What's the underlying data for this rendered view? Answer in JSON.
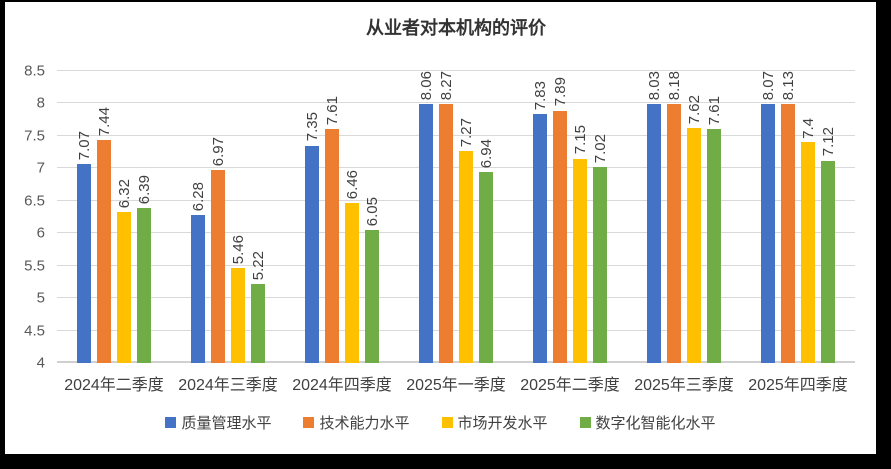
{
  "chart_data": {
    "type": "bar",
    "title": "从业者对本机构的评价",
    "categories": [
      "2024年二季度",
      "2024年三季度",
      "2024年四季度",
      "2025年一季度",
      "2025年二季度",
      "2025年三季度",
      "2025年四季度"
    ],
    "series": [
      {
        "name": "质量管理水平",
        "color": "#4472C4",
        "values": [
          7.07,
          6.28,
          7.35,
          8.06,
          7.83,
          8.03,
          8.07
        ]
      },
      {
        "name": "技术能力水平",
        "color": "#ED7D31",
        "values": [
          7.44,
          6.97,
          7.61,
          8.27,
          7.89,
          8.18,
          8.13
        ]
      },
      {
        "name": "市场开发水平",
        "color": "#FFC000",
        "values": [
          6.32,
          5.46,
          6.46,
          7.27,
          7.15,
          7.62,
          7.4
        ]
      },
      {
        "name": "数字化智能化水平",
        "color": "#70AD47",
        "values": [
          6.39,
          5.22,
          6.05,
          6.94,
          7.02,
          7.61,
          7.12
        ]
      }
    ],
    "ylim": [
      4,
      8.5
    ],
    "ytick_step": 0.5,
    "yticks": [
      "8.5",
      "8",
      "7.5",
      "7",
      "6.5",
      "6",
      "5.5",
      "5",
      "4.5",
      "4"
    ],
    "grid": true,
    "data_labels": true,
    "data_label_rotation": "vertical",
    "legend_position": "bottom",
    "colors": {
      "background_frame": "#000000",
      "plot_background": "#FFFFFF",
      "gridline": "#D9D9D9",
      "tick_text": "#595959",
      "label_text": "#404040"
    }
  }
}
